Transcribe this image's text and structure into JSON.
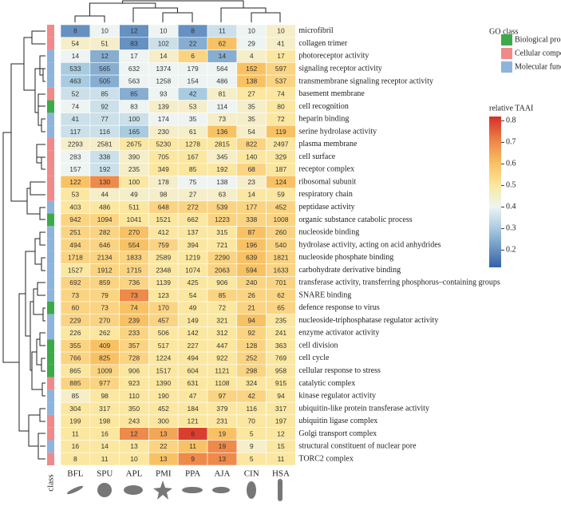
{
  "chart_data": {
    "type": "heatmap",
    "columns": [
      "BFL",
      "SPU",
      "APL",
      "PMI",
      "PPA",
      "AJA",
      "CIN",
      "HSA"
    ],
    "class_label": "class",
    "legend_title": "GO class",
    "classes": [
      {
        "name": "Biological process",
        "color": "#3daa4a"
      },
      {
        "name": "Cellular component",
        "color": "#f08a8a"
      },
      {
        "name": "Molecular function",
        "color": "#8fb4dc"
      }
    ],
    "colorbar_title": "relative TAAI",
    "clim": [
      0.12,
      0.82
    ],
    "colorbar_ticks": [
      0.2,
      0.3,
      0.4,
      0.5,
      0.6,
      0.7,
      0.8
    ],
    "colorscale": [
      [
        0.12,
        "#3262a8"
      ],
      [
        0.3,
        "#a8cbe0"
      ],
      [
        0.4,
        "#eef4f2"
      ],
      [
        0.5,
        "#fbe7a0"
      ],
      [
        0.6,
        "#f8c264"
      ],
      [
        0.7,
        "#ee8a4a"
      ],
      [
        0.82,
        "#d62f28"
      ]
    ],
    "rows": [
      {
        "label": "microfibril",
        "class": 1
      },
      {
        "label": "collagen trimer",
        "class": 1
      },
      {
        "label": "photoreceptor activity",
        "class": 2
      },
      {
        "label": "signaling receptor activity",
        "class": 2
      },
      {
        "label": "transmembrane signaling receptor activity",
        "class": 2
      },
      {
        "label": "basement membrane",
        "class": 1
      },
      {
        "label": "cell recognition",
        "class": 0
      },
      {
        "label": "heparin binding",
        "class": 2
      },
      {
        "label": "serine hydrolase activity",
        "class": 2
      },
      {
        "label": "plasma membrane",
        "class": 1
      },
      {
        "label": "cell surface",
        "class": 1
      },
      {
        "label": "receptor complex",
        "class": 1
      },
      {
        "label": "ribosomal subunit",
        "class": 1
      },
      {
        "label": "respiratory chain",
        "class": 1
      },
      {
        "label": "peptidase activity",
        "class": 2
      },
      {
        "label": "organic substance catabolic process",
        "class": 0
      },
      {
        "label": "nucleoside binding",
        "class": 2
      },
      {
        "label": "hydrolase activity, acting on acid anhydrides",
        "class": 2
      },
      {
        "label": "nucleoside phosphate binding",
        "class": 2
      },
      {
        "label": "carbohydrate derivative binding",
        "class": 2
      },
      {
        "label": "transferase activity, transferring phosphorus–containing groups",
        "class": 2
      },
      {
        "label": "SNARE binding",
        "class": 2
      },
      {
        "label": "defence response to virus",
        "class": 0
      },
      {
        "label": "nucleoside-triphosphatase regulator activity",
        "class": 2
      },
      {
        "label": "enzyme activator activity",
        "class": 2
      },
      {
        "label": "cell division",
        "class": 0
      },
      {
        "label": "cell cycle",
        "class": 0
      },
      {
        "label": "cellular response to stress",
        "class": 0
      },
      {
        "label": "catalytic complex",
        "class": 1
      },
      {
        "label": "kinase regulator activity",
        "class": 2
      },
      {
        "label": "ubiquitin-like protein transferase activity",
        "class": 2
      },
      {
        "label": "ubiquitin ligase complex",
        "class": 1
      },
      {
        "label": "Golgi transport complex",
        "class": 1
      },
      {
        "label": "structural constituent of nuclear pore",
        "class": 2
      },
      {
        "label": "TORC2 complex",
        "class": 1
      }
    ],
    "counts": [
      [
        8,
        10,
        12,
        10,
        8,
        11,
        10,
        10
      ],
      [
        54,
        51,
        83,
        102,
        22,
        62,
        29,
        41
      ],
      [
        14,
        12,
        17,
        14,
        6,
        14,
        4,
        17
      ],
      [
        533,
        565,
        632,
        1374,
        179,
        564,
        152,
        597
      ],
      [
        463,
        505,
        563,
        1258,
        154,
        486,
        138,
        537
      ],
      [
        52,
        85,
        85,
        93,
        42,
        81,
        27,
        74
      ],
      [
        74,
        92,
        83,
        139,
        53,
        114,
        35,
        80
      ],
      [
        41,
        77,
        100,
        174,
        35,
        73,
        35,
        72
      ],
      [
        117,
        116,
        165,
        230,
        61,
        136,
        54,
        119
      ],
      [
        2293,
        2581,
        2675,
        5230,
        1278,
        2815,
        822,
        2497
      ],
      [
        283,
        338,
        390,
        705,
        167,
        345,
        140,
        329
      ],
      [
        157,
        192,
        235,
        349,
        85,
        192,
        68,
        187
      ],
      [
        122,
        130,
        100,
        178,
        75,
        138,
        23,
        124
      ],
      [
        53,
        44,
        49,
        98,
        27,
        63,
        14,
        59
      ],
      [
        403,
        486,
        511,
        648,
        272,
        539,
        177,
        452
      ],
      [
        942,
        1094,
        1041,
        1521,
        662,
        1223,
        338,
        1008
      ],
      [
        251,
        282,
        270,
        412,
        137,
        315,
        87,
        260
      ],
      [
        494,
        646,
        554,
        759,
        394,
        721,
        196,
        540
      ],
      [
        1718,
        2134,
        1833,
        2589,
        1219,
        2290,
        639,
        1821
      ],
      [
        1527,
        1912,
        1715,
        2348,
        1074,
        2063,
        594,
        1633
      ],
      [
        692,
        859,
        736,
        1139,
        425,
        906,
        240,
        701
      ],
      [
        73,
        79,
        73,
        123,
        54,
        85,
        26,
        62
      ],
      [
        60,
        73,
        74,
        170,
        49,
        72,
        21,
        65
      ],
      [
        229,
        270,
        239,
        457,
        149,
        321,
        94,
        235
      ],
      [
        226,
        262,
        233,
        506,
        142,
        312,
        92,
        241
      ],
      [
        355,
        409,
        357,
        517,
        227,
        447,
        128,
        363
      ],
      [
        766,
        825,
        728,
        1224,
        494,
        922,
        252,
        769
      ],
      [
        865,
        1009,
        906,
        1517,
        604,
        1121,
        298,
        958
      ],
      [
        885,
        977,
        923,
        1390,
        631,
        1108,
        324,
        915
      ],
      [
        85,
        98,
        110,
        190,
        47,
        97,
        42,
        94
      ],
      [
        304,
        317,
        350,
        452,
        184,
        379,
        116,
        317
      ],
      [
        199,
        198,
        243,
        300,
        121,
        231,
        70,
        197
      ],
      [
        11,
        16,
        12,
        13,
        8,
        19,
        5,
        12
      ],
      [
        16,
        14,
        13,
        22,
        11,
        19,
        9,
        15
      ],
      [
        8,
        11,
        10,
        13,
        9,
        13,
        5,
        11
      ]
    ],
    "taai": [
      [
        0.2,
        0.4,
        0.2,
        0.4,
        0.2,
        0.35,
        0.4,
        0.45
      ],
      [
        0.45,
        0.45,
        0.2,
        0.35,
        0.25,
        0.6,
        0.4,
        0.45
      ],
      [
        0.4,
        0.25,
        0.4,
        0.45,
        0.55,
        0.25,
        0.45,
        0.5
      ],
      [
        0.3,
        0.25,
        0.4,
        0.4,
        0.4,
        0.4,
        0.6,
        0.55
      ],
      [
        0.3,
        0.25,
        0.4,
        0.4,
        0.4,
        0.4,
        0.6,
        0.55
      ],
      [
        0.35,
        0.35,
        0.25,
        0.4,
        0.3,
        0.45,
        0.5,
        0.5
      ],
      [
        0.4,
        0.35,
        0.4,
        0.45,
        0.45,
        0.4,
        0.45,
        0.5
      ],
      [
        0.35,
        0.35,
        0.35,
        0.4,
        0.4,
        0.45,
        0.45,
        0.5
      ],
      [
        0.35,
        0.35,
        0.3,
        0.45,
        0.45,
        0.6,
        0.45,
        0.6
      ],
      [
        0.45,
        0.45,
        0.5,
        0.5,
        0.5,
        0.5,
        0.55,
        0.5
      ],
      [
        0.4,
        0.35,
        0.45,
        0.5,
        0.5,
        0.45,
        0.5,
        0.5
      ],
      [
        0.4,
        0.35,
        0.45,
        0.5,
        0.5,
        0.5,
        0.55,
        0.5
      ],
      [
        0.6,
        0.7,
        0.5,
        0.45,
        0.4,
        0.4,
        0.45,
        0.6
      ],
      [
        0.5,
        0.45,
        0.45,
        0.45,
        0.45,
        0.45,
        0.5,
        0.5
      ],
      [
        0.5,
        0.5,
        0.5,
        0.55,
        0.55,
        0.55,
        0.55,
        0.55
      ],
      [
        0.55,
        0.55,
        0.5,
        0.5,
        0.5,
        0.55,
        0.55,
        0.55
      ],
      [
        0.55,
        0.55,
        0.6,
        0.5,
        0.5,
        0.5,
        0.6,
        0.55
      ],
      [
        0.55,
        0.55,
        0.6,
        0.55,
        0.5,
        0.5,
        0.6,
        0.55
      ],
      [
        0.55,
        0.55,
        0.55,
        0.5,
        0.5,
        0.55,
        0.6,
        0.55
      ],
      [
        0.5,
        0.55,
        0.55,
        0.5,
        0.5,
        0.55,
        0.6,
        0.55
      ],
      [
        0.55,
        0.55,
        0.55,
        0.5,
        0.5,
        0.5,
        0.55,
        0.55
      ],
      [
        0.55,
        0.55,
        0.7,
        0.5,
        0.5,
        0.55,
        0.55,
        0.55
      ],
      [
        0.55,
        0.55,
        0.6,
        0.55,
        0.5,
        0.5,
        0.55,
        0.55
      ],
      [
        0.55,
        0.55,
        0.6,
        0.55,
        0.5,
        0.5,
        0.6,
        0.5
      ],
      [
        0.5,
        0.5,
        0.55,
        0.5,
        0.5,
        0.5,
        0.55,
        0.5
      ],
      [
        0.55,
        0.6,
        0.55,
        0.5,
        0.5,
        0.5,
        0.55,
        0.5
      ],
      [
        0.55,
        0.6,
        0.55,
        0.5,
        0.5,
        0.5,
        0.55,
        0.5
      ],
      [
        0.5,
        0.55,
        0.5,
        0.5,
        0.5,
        0.5,
        0.55,
        0.5
      ],
      [
        0.55,
        0.55,
        0.5,
        0.5,
        0.5,
        0.5,
        0.5,
        0.5
      ],
      [
        0.45,
        0.5,
        0.5,
        0.5,
        0.5,
        0.55,
        0.55,
        0.5
      ],
      [
        0.5,
        0.5,
        0.5,
        0.5,
        0.5,
        0.5,
        0.5,
        0.5
      ],
      [
        0.5,
        0.5,
        0.5,
        0.5,
        0.5,
        0.5,
        0.5,
        0.5
      ],
      [
        0.5,
        0.5,
        0.7,
        0.65,
        0.8,
        0.6,
        0.5,
        0.5
      ],
      [
        0.5,
        0.5,
        0.5,
        0.55,
        0.6,
        0.7,
        0.45,
        0.5
      ],
      [
        0.5,
        0.5,
        0.5,
        0.6,
        0.7,
        0.7,
        0.5,
        0.5
      ]
    ]
  }
}
